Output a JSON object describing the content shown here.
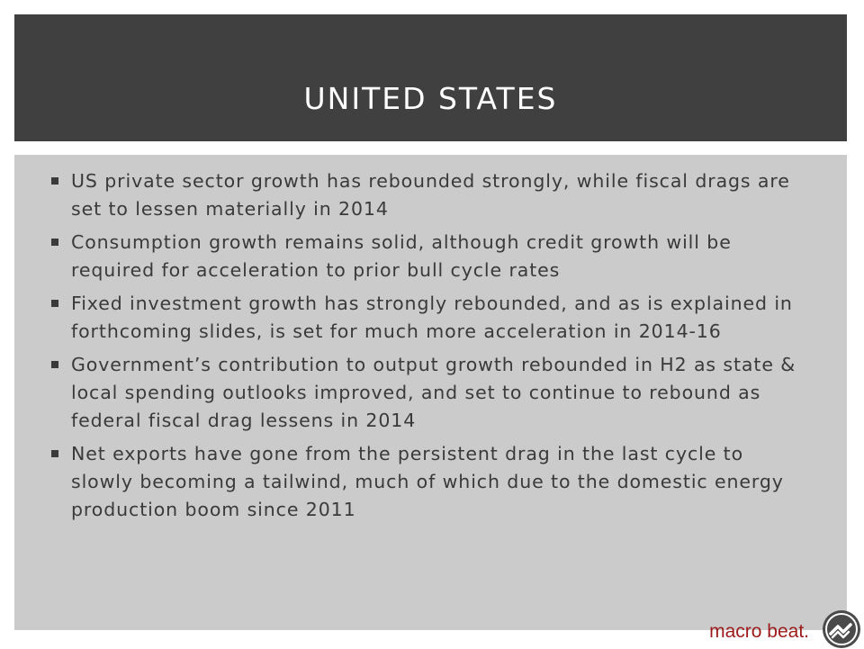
{
  "slide": {
    "title": "UNITED STATES",
    "bullets": [
      "US private sector growth has rebounded strongly, while fiscal drags are set to lessen materially in 2014",
      "Consumption growth remains solid, although credit growth will be required for acceleration to prior bull cycle rates",
      "Fixed investment growth has strongly rebounded, and as is explained in forthcoming slides, is set for much more acceleration in 2014-16",
      "Government’s contribution to output growth rebounded in H2 as state & local spending outlooks improved, and set to continue to rebound as federal fiscal drag lessens in 2014",
      "Net exports have gone from the persistent drag in the last cycle to slowly becoming a tailwind, much of which due to the domestic energy production boom since 2011"
    ]
  },
  "footer": {
    "brand": "macro beat.",
    "logo_icon": "macro-beat-logo-icon",
    "brand_color": "#9c1c1c"
  },
  "colors": {
    "title_bar": "#404040",
    "content_panel": "#cbcbcb",
    "text": "#3a3a3a"
  }
}
